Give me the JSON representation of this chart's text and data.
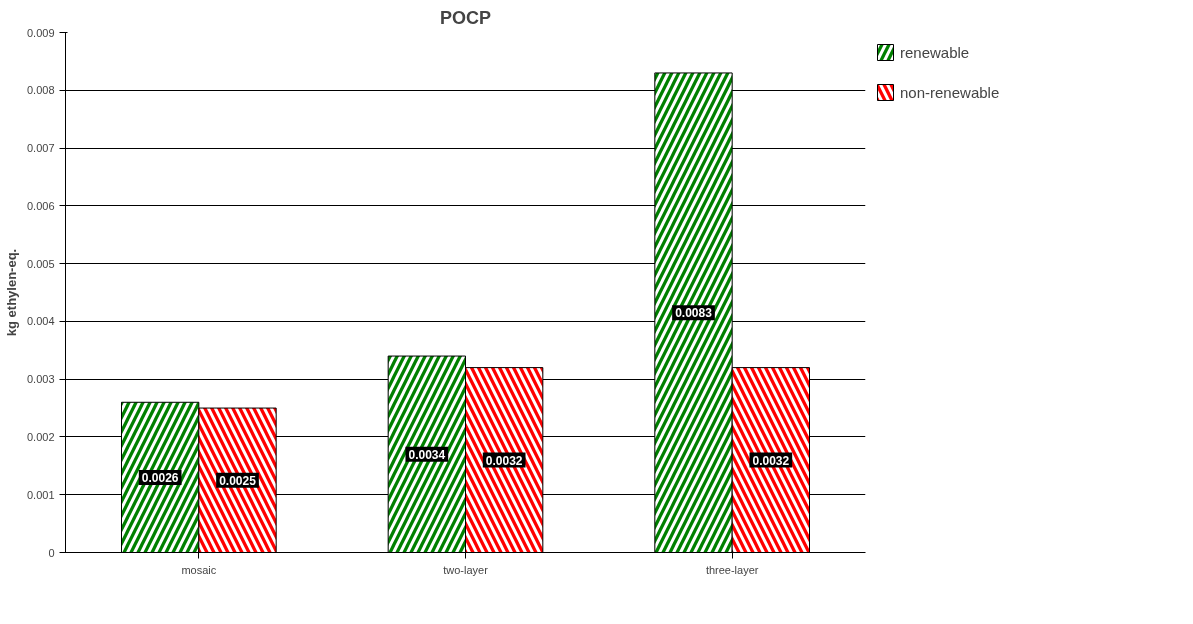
{
  "chart_data": {
    "type": "bar",
    "title": "POCP",
    "ylabel": "kg ethylen-eq.",
    "categories": [
      "mosaic",
      "two-layer",
      "three-layer"
    ],
    "series": [
      {
        "name": "renewable",
        "color": "#008000",
        "values": [
          0.0026,
          0.0034,
          0.0083
        ]
      },
      {
        "name": "non-renewable",
        "color": "#ff0000",
        "values": [
          0.0025,
          0.0032,
          0.0032
        ]
      }
    ],
    "ylim": [
      0,
      0.009
    ],
    "yticks": [
      0,
      0.001,
      0.002,
      0.003,
      0.004,
      0.005,
      0.006,
      0.007,
      0.008,
      0.009
    ],
    "grid": "y",
    "legend": "right",
    "data_labels": true
  }
}
